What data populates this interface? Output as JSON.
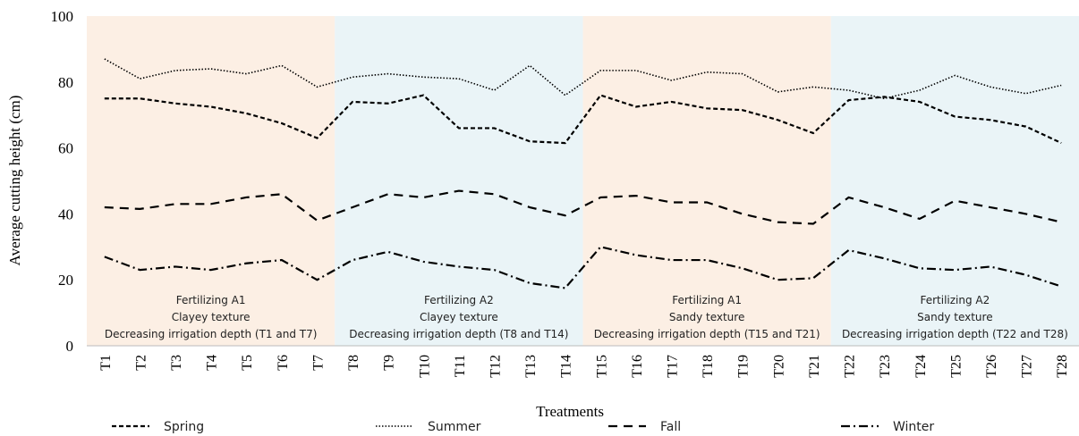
{
  "chart_data": {
    "type": "line",
    "y_label": "Average cutting height (cm)",
    "x_label": "Treatments",
    "categories": [
      "T1",
      "T2",
      "T3",
      "T4",
      "T5",
      "T6",
      "T7",
      "T8",
      "T9",
      "T10",
      "T11",
      "T12",
      "T13",
      "T14",
      "T15",
      "T16",
      "T17",
      "T18",
      "T19",
      "T20",
      "T21",
      "T22",
      "T23",
      "T24",
      "T25",
      "T26",
      "T27",
      "T28"
    ],
    "ylim": [
      0,
      100
    ],
    "yticks": [
      0,
      20,
      40,
      60,
      80,
      100
    ],
    "grid": false,
    "legend": "bottom",
    "regions": [
      {
        "from": "T1",
        "to": "T7",
        "color": "#fcefe4",
        "lines": [
          "Fertilizing A1",
          "Clayey texture",
          "Decreasing irrigation depth (T1 and T7)"
        ]
      },
      {
        "from": "T8",
        "to": "T14",
        "color": "#eaf4f7",
        "lines": [
          "Fertilizing A2",
          "Clayey texture",
          "Decreasing irrigation depth (T8 and T14)"
        ]
      },
      {
        "from": "T15",
        "to": "T21",
        "color": "#fcefe4",
        "lines": [
          "Fertilizing A1",
          "Sandy texture",
          "Decreasing irrigation depth (T15 and T21)"
        ]
      },
      {
        "from": "T22",
        "to": "T28",
        "color": "#eaf4f7",
        "lines": [
          "Fertilizing A2",
          "Sandy texture",
          "Decreasing irrigation depth (T22 and T28)"
        ]
      }
    ],
    "series": [
      {
        "name": "Spring",
        "color": "#000000",
        "style": "dashed",
        "values": [
          75,
          75,
          73.5,
          72.5,
          70.5,
          67.5,
          63,
          74,
          73.5,
          76,
          66,
          66,
          62,
          61.5,
          76,
          72.5,
          74,
          72,
          71.5,
          68.5,
          64.5,
          74.5,
          75.5,
          74,
          69.5,
          68.5,
          66.5,
          61.5
        ]
      },
      {
        "name": "Summer",
        "color": "#000000",
        "style": "dotted",
        "values": [
          87,
          81,
          83.5,
          84,
          82.5,
          85,
          78.5,
          81.5,
          82.5,
          81.5,
          81,
          77.5,
          85,
          76,
          83.5,
          83.5,
          80.5,
          83,
          82.5,
          77,
          78.5,
          77.5,
          75,
          77.5,
          82,
          78.5,
          76.5,
          79
        ]
      },
      {
        "name": "Fall",
        "color": "#000000",
        "style": "long-dashed",
        "values": [
          42,
          41.5,
          43,
          43,
          45,
          46,
          38,
          42,
          46,
          45,
          47,
          46,
          42,
          39.5,
          45,
          45.5,
          43.5,
          43.5,
          40,
          37.5,
          37,
          45,
          42,
          38.5,
          44,
          42,
          40,
          37.5
        ]
      },
      {
        "name": "Winter",
        "color": "#000000",
        "style": "dash-dot",
        "values": [
          27,
          23,
          24,
          23,
          25,
          26,
          20,
          26,
          28.5,
          25.5,
          24,
          23,
          19,
          17.5,
          30,
          27.5,
          26,
          26,
          23.5,
          20,
          20.5,
          29,
          26.5,
          23.5,
          23,
          24,
          21.5,
          18
        ]
      }
    ]
  }
}
